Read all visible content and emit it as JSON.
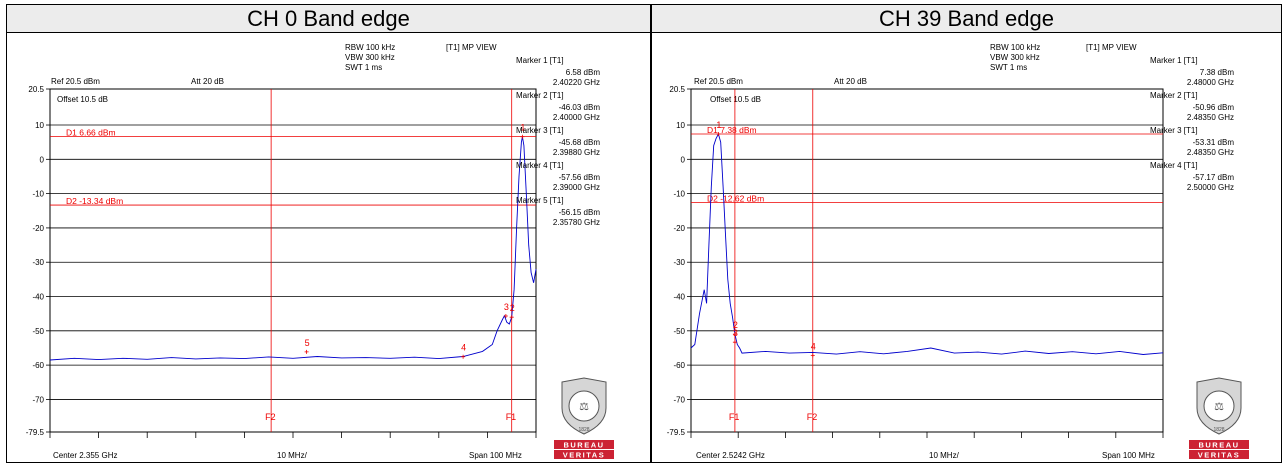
{
  "colors": {
    "trace": "#0000cc",
    "line": "#ee0000",
    "grid": "#000000",
    "logo_red": "#cc2233",
    "header_bg": "#ececec"
  },
  "panels": [
    {
      "title": "CH 0 Band edge",
      "settings": {
        "rbw": "RBW 100 kHz",
        "vbw": "VBW 300 kHz",
        "swt": "SWT 1 ms",
        "view": "[T1] MP VIEW",
        "ref": "Ref 20.5 dBm",
        "att": "Att  20 dB",
        "offset": "Offset 10.5 dB"
      },
      "markers": [
        {
          "label": "Marker 1 [T1]",
          "level": "6.58 dBm",
          "freq": "2.40220 GHz"
        },
        {
          "label": "Marker 2 [T1]",
          "level": "-46.03 dBm",
          "freq": "2.40000 GHz"
        },
        {
          "label": "Marker 3 [T1]",
          "level": "-45.68 dBm",
          "freq": "2.39880 GHz"
        },
        {
          "label": "Marker 4 [T1]",
          "level": "-57.56 dBm",
          "freq": "2.39000 GHz"
        },
        {
          "label": "Marker 5 [T1]",
          "level": "-56.15 dBm",
          "freq": "2.35780 GHz"
        }
      ],
      "bottom": {
        "center": "Center 2.355 GHz",
        "div": "10 MHz/",
        "span": "Span 100 MHz"
      }
    },
    {
      "title": "CH 39 Band edge",
      "settings": {
        "rbw": "RBW 100 kHz",
        "vbw": "VBW 300 kHz",
        "swt": "SWT 1 ms",
        "view": "[T1] MP VIEW",
        "ref": "Ref 20.5 dBm",
        "att": "Att  20 dB",
        "offset": "Offset 10.5 dB"
      },
      "markers": [
        {
          "label": "Marker 1 [T1]",
          "level": "7.38 dBm",
          "freq": "2.48000 GHz"
        },
        {
          "label": "Marker 2 [T1]",
          "level": "-50.96 dBm",
          "freq": "2.48350 GHz"
        },
        {
          "label": "Marker 3 [T1]",
          "level": "-53.31 dBm",
          "freq": "2.48350 GHz"
        },
        {
          "label": "Marker 4 [T1]",
          "level": "-57.17 dBm",
          "freq": "2.50000 GHz"
        }
      ],
      "bottom": {
        "center": "Center 2.5242 GHz",
        "div": "10 MHz/",
        "span": "Span 100 MHz"
      }
    }
  ],
  "logo": {
    "top": "BUREAU",
    "bottom": "VERITAS",
    "year": "1828"
  },
  "chart_data": [
    {
      "type": "line",
      "title": "CH 0 Band edge",
      "xlabel": "",
      "ylabel": "",
      "xlim": [
        2.305,
        2.405
      ],
      "ylim": [
        -79.5,
        20.5
      ],
      "yticks": [
        20.5,
        10,
        0,
        -10,
        -20,
        -30,
        -40,
        -50,
        -60,
        -70,
        -79.5
      ],
      "ytick_labels": [
        "20.5",
        "10",
        "0",
        "-10",
        "-20",
        "-30",
        "-40",
        "-50",
        "-60",
        "-70",
        "-79.5"
      ],
      "grid": true,
      "display_lines": [
        {
          "name": "D1",
          "label": "D1 6.66 dBm",
          "value": 6.66
        },
        {
          "name": "D2",
          "label": "D2 -13.34 dBm",
          "value": -13.34
        }
      ],
      "freq_lines": [
        {
          "name": "F2",
          "label": "F2",
          "value": 2.3505
        },
        {
          "name": "F1",
          "label": "F1",
          "value": 2.4
        }
      ],
      "markers": [
        {
          "id": "1",
          "x": 2.4022,
          "y": 6.58
        },
        {
          "id": "2",
          "x": 2.4,
          "y": -46.03
        },
        {
          "id": "3",
          "x": 2.3988,
          "y": -45.68
        },
        {
          "id": "4",
          "x": 2.39,
          "y": -57.56
        },
        {
          "id": "5",
          "x": 2.3578,
          "y": -56.15
        }
      ],
      "series": [
        {
          "x": [
            2.305,
            2.31,
            2.315,
            2.32,
            2.325,
            2.33,
            2.335,
            2.34,
            2.345,
            2.35,
            2.355,
            2.36,
            2.365,
            2.37,
            2.375,
            2.38,
            2.385,
            2.39,
            2.394,
            2.396,
            2.397,
            2.398,
            2.3985,
            2.399,
            2.3995,
            2.4,
            2.4005,
            2.401,
            2.4015,
            2.402,
            2.4022,
            2.4025,
            2.403,
            2.4035,
            2.404,
            2.4045,
            2.405
          ],
          "values": [
            -58.5,
            -58.0,
            -58.4,
            -58.0,
            -58.3,
            -57.8,
            -58.2,
            -57.9,
            -58.1,
            -57.6,
            -58.0,
            -57.5,
            -57.9,
            -57.8,
            -58.0,
            -57.7,
            -58.1,
            -57.5,
            -56.0,
            -54.0,
            -50.0,
            -47.0,
            -45.6,
            -47.5,
            -48.0,
            -46.0,
            -38.0,
            -20.0,
            -5.0,
            5.0,
            6.58,
            4.0,
            -10.0,
            -25.0,
            -33.0,
            -36.0,
            -32.0
          ]
        }
      ]
    },
    {
      "type": "line",
      "title": "CH 39 Band edge",
      "xlabel": "",
      "ylabel": "",
      "xlim": [
        2.4742,
        2.5742
      ],
      "ylim": [
        -79.5,
        20.5
      ],
      "yticks": [
        20.5,
        10,
        0,
        -10,
        -20,
        -30,
        -40,
        -50,
        -60,
        -70,
        -79.5
      ],
      "ytick_labels": [
        "20.5",
        "10",
        "0",
        "-10",
        "-20",
        "-30",
        "-40",
        "-50",
        "-60",
        "-70",
        "-79.5"
      ],
      "grid": true,
      "display_lines": [
        {
          "name": "D1",
          "label": "D1 7.38 dBm",
          "value": 7.38
        },
        {
          "name": "D2",
          "label": "D2 -12.62 dBm",
          "value": -12.62
        }
      ],
      "freq_lines": [
        {
          "name": "F1",
          "label": "F1",
          "value": 2.4835
        },
        {
          "name": "F2",
          "label": "F2",
          "value": 2.5
        }
      ],
      "markers": [
        {
          "id": "1",
          "x": 2.48,
          "y": 7.38
        },
        {
          "id": "2",
          "x": 2.4835,
          "y": -50.96
        },
        {
          "id": "3",
          "x": 2.4835,
          "y": -53.31
        },
        {
          "id": "4",
          "x": 2.5,
          "y": -57.17
        }
      ],
      "series": [
        {
          "x": [
            2.4742,
            2.475,
            2.476,
            2.477,
            2.4775,
            2.478,
            2.4785,
            2.479,
            2.4795,
            2.48,
            2.4805,
            2.481,
            2.4815,
            2.482,
            2.4825,
            2.483,
            2.4835,
            2.484,
            2.4845,
            2.485,
            2.49,
            2.495,
            2.5,
            2.505,
            2.51,
            2.515,
            2.52,
            2.525,
            2.53,
            2.535,
            2.54,
            2.545,
            2.55,
            2.555,
            2.56,
            2.565,
            2.57,
            2.5742
          ],
          "values": [
            -55.0,
            -54.0,
            -45.0,
            -38.0,
            -42.0,
            -25.0,
            -8.0,
            4.0,
            6.0,
            7.38,
            5.0,
            -8.0,
            -22.0,
            -35.0,
            -42.0,
            -46.0,
            -51.0,
            -54.0,
            -55.0,
            -56.5,
            -56.0,
            -56.5,
            -56.3,
            -56.8,
            -56.1,
            -56.7,
            -56.0,
            -55.0,
            -56.5,
            -56.2,
            -56.8,
            -55.9,
            -56.6,
            -56.1,
            -56.7,
            -56.0,
            -56.9,
            -56.4
          ]
        }
      ]
    }
  ]
}
